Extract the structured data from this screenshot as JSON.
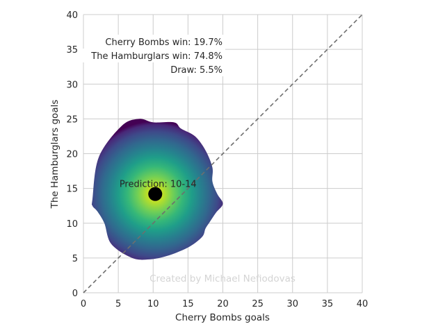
{
  "chart_data": {
    "type": "heatmap",
    "title": "",
    "xlabel": "Cherry Bombs goals",
    "ylabel": "The Hamburglars goals",
    "xlim": [
      0,
      40
    ],
    "ylim": [
      0,
      40
    ],
    "xticks": [
      "0",
      "5",
      "10",
      "15",
      "20",
      "25",
      "30",
      "35",
      "40"
    ],
    "yticks": [
      "0",
      "5",
      "10",
      "15",
      "20",
      "25",
      "30",
      "35",
      "40"
    ],
    "grid": true,
    "colormap": "viridis",
    "density_center": [
      10.3,
      14.2
    ],
    "density_contour": [
      [
        1.3,
        13.5
      ],
      [
        2.2,
        19.5
      ],
      [
        5.5,
        24
      ],
      [
        8,
        25
      ],
      [
        10,
        24.5
      ],
      [
        13,
        24.5
      ],
      [
        14,
        23.6
      ],
      [
        16,
        22.5
      ],
      [
        17.5,
        20.5
      ],
      [
        18.5,
        18
      ],
      [
        18.5,
        16
      ],
      [
        19.2,
        14.2
      ],
      [
        20,
        12.8
      ],
      [
        19,
        11.5
      ],
      [
        18,
        10
      ],
      [
        17.5,
        9.2
      ],
      [
        17,
        8
      ],
      [
        15,
        6.5
      ],
      [
        12,
        5.3
      ],
      [
        9.5,
        4.8
      ],
      [
        7,
        5
      ],
      [
        4,
        7
      ],
      [
        3,
        10
      ],
      [
        2,
        11.7
      ],
      [
        1.3,
        12.5
      ]
    ],
    "diagonal": {
      "from": [
        0,
        0
      ],
      "to": [
        40,
        40
      ],
      "style": "dashed",
      "color": "#6e6e6e"
    },
    "prediction": {
      "label": "Prediction: 10-14",
      "x": 10.3,
      "y": 14.2,
      "color": "#000000"
    },
    "annotations": [
      "Cherry Bombs win: 19.7%",
      "The Hamburglars win: 74.8%",
      "Draw: 5.5%"
    ],
    "watermark": "Created by Michael Nefiodovas"
  }
}
